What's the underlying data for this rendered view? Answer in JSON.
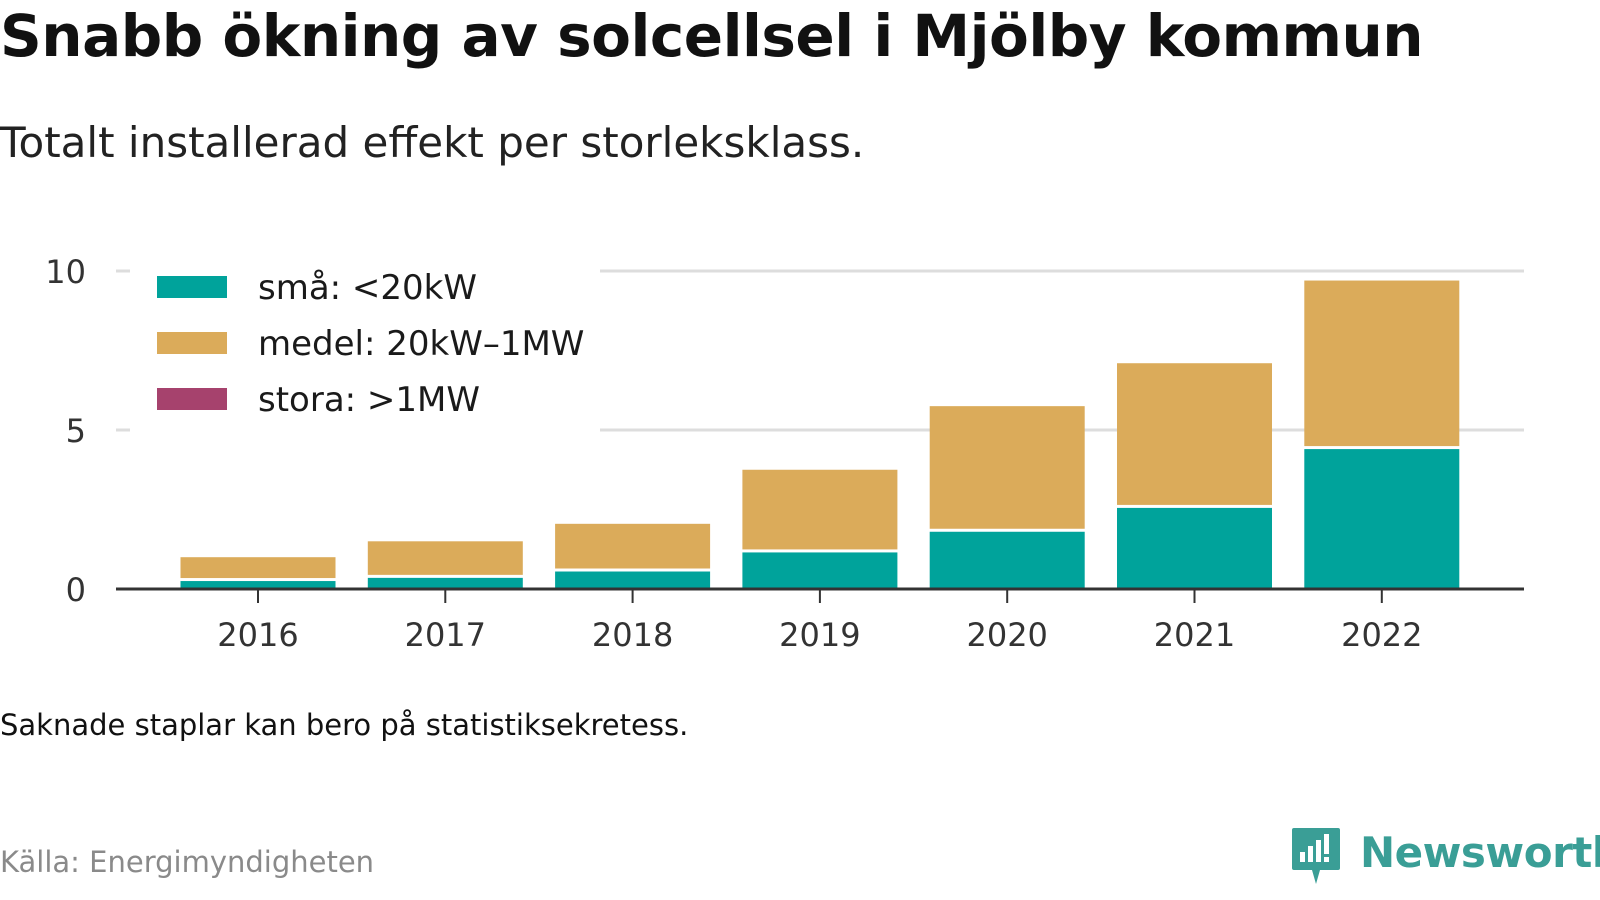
{
  "title": "Snabb ökning av solcellsel i Mjölby kommun",
  "subtitle": "Totalt installerad effekt per storleksklass.",
  "note": "Saknade staplar kan bero på statistiksekretess.",
  "source": "Källa: Energimyndigheten",
  "brand": {
    "name": "Newsworthy",
    "logo_icon": "newsworthy-logo-icon"
  },
  "colors": {
    "small": "#00a39b",
    "medium": "#dbab5a",
    "large": "#a6426d",
    "grid": "#dddddd",
    "axis": "#333333"
  },
  "chart_data": {
    "type": "bar",
    "stacked": true,
    "categories": [
      "2016",
      "2017",
      "2018",
      "2019",
      "2020",
      "2021",
      "2022"
    ],
    "series": [
      {
        "name": "små: <20kW",
        "color": "#00a39b",
        "values": [
          0.25,
          0.35,
          0.55,
          1.15,
          1.8,
          2.55,
          4.4
        ]
      },
      {
        "name": "medel: 20kW–1MW",
        "color": "#dbab5a",
        "values": [
          0.75,
          1.15,
          1.5,
          2.6,
          3.95,
          4.55,
          5.3
        ]
      },
      {
        "name": "stora: >1MW",
        "color": "#a6426d",
        "values": [
          0,
          0,
          0,
          0,
          0,
          0,
          0
        ]
      }
    ],
    "ylim": [
      0,
      10
    ],
    "yticks": [
      0,
      5,
      10
    ],
    "grid": true,
    "legend_position": "top-left"
  }
}
